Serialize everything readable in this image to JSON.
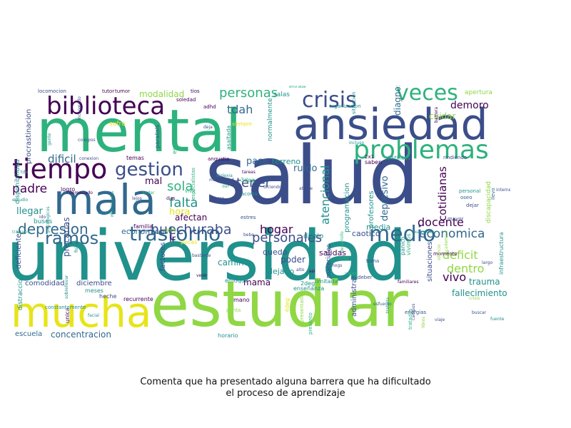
{
  "caption": {
    "line1": "Comenta que ha presentado alguna barrera que ha dificultado",
    "line2": "el proceso de aprendizaje"
  },
  "palette": {
    "dark_purple": "#440154",
    "indigo": "#3b4e8a",
    "blue": "#31688e",
    "teal": "#21918c",
    "green": "#2db27d",
    "lime": "#8fd744",
    "yellow": "#e7e419"
  },
  "words": [
    {
      "text": "salud",
      "color": "#3b4e8a"
    },
    {
      "text": "universidad",
      "color": "#21918c"
    },
    {
      "text": "mental",
      "color": "#2db27d"
    },
    {
      "text": "estudiar",
      "color": "#8fd744"
    },
    {
      "text": "mucha",
      "color": "#e7e419"
    },
    {
      "text": "ansiedad",
      "color": "#3b4e8a"
    },
    {
      "text": "mala",
      "color": "#31688e"
    },
    {
      "text": "biblioteca",
      "color": "#440154"
    },
    {
      "text": "tiempo",
      "color": "#440154"
    },
    {
      "text": "problemas",
      "color": "#2db27d"
    },
    {
      "text": "veces",
      "color": "#2db27d"
    },
    {
      "text": "crisis",
      "color": "#3b4e8a"
    },
    {
      "text": "gestion",
      "color": "#3b4e8a"
    },
    {
      "text": "trastorno",
      "color": "#31688e"
    },
    {
      "text": "ramos",
      "color": "#31688e"
    },
    {
      "text": "medio",
      "color": "#31688e"
    },
    {
      "text": "depresion",
      "color": "#31688e"
    },
    {
      "text": "huechuraba",
      "color": "#3b4e8a"
    },
    {
      "text": "personales",
      "color": "#3b4e8a"
    },
    {
      "text": "personas",
      "color": "#2db27d"
    },
    {
      "text": "falta",
      "color": "#21918c"
    },
    {
      "text": "tener",
      "color": "#3b4e8a"
    },
    {
      "text": "sola",
      "color": "#2db27d"
    },
    {
      "text": "padre",
      "color": "#440154"
    },
    {
      "text": "dificil",
      "color": "#31688e"
    },
    {
      "text": "llegar",
      "color": "#21918c"
    },
    {
      "text": "modalidad",
      "color": "#8fd744"
    },
    {
      "text": "tdah",
      "color": "#31688e"
    },
    {
      "text": "economica",
      "color": "#31688e"
    },
    {
      "text": "hogar",
      "color": "#440154"
    },
    {
      "text": "deficit",
      "color": "#8fd744"
    },
    {
      "text": "dentro",
      "color": "#8fd744"
    },
    {
      "text": "vivo",
      "color": "#440154"
    },
    {
      "text": "docente",
      "color": "#440154"
    },
    {
      "text": "demoro",
      "color": "#440154"
    },
    {
      "text": "cuidar",
      "color": "#8fd744"
    },
    {
      "text": "trauma",
      "color": "#21918c"
    },
    {
      "text": "concentracion",
      "color": "#31688e"
    },
    {
      "text": "fallecimiento",
      "color": "#21918c"
    },
    {
      "text": "diagnostico",
      "color": "#31688e"
    },
    {
      "text": "atencional",
      "color": "#21918c"
    },
    {
      "text": "depresivo",
      "color": "#31688e"
    },
    {
      "text": "cotidianas",
      "color": "#440154"
    },
    {
      "text": "hora",
      "color": "#e7e419"
    },
    {
      "text": "mal",
      "color": "#440154"
    },
    {
      "text": "ir",
      "color": "#440154"
    },
    {
      "text": "ruido",
      "color": "#31688e"
    },
    {
      "text": "pase",
      "color": "#31688e"
    },
    {
      "text": "terreno",
      "color": "#21918c"
    },
    {
      "text": "afectan",
      "color": "#440154"
    },
    {
      "text": "economicos",
      "color": "#31688e"
    },
    {
      "text": "quedo",
      "color": "#3b4e8a"
    },
    {
      "text": "poder",
      "color": "#3b4e8a"
    },
    {
      "text": "dejado",
      "color": "#21918c"
    },
    {
      "text": "salidas",
      "color": "#440154"
    },
    {
      "text": "caotico",
      "color": "#3b4e8a"
    },
    {
      "text": "media",
      "color": "#21918c"
    },
    {
      "text": "diario",
      "color": "#21918c"
    },
    {
      "text": "camino",
      "color": "#21918c"
    },
    {
      "text": "mama",
      "color": "#440154"
    },
    {
      "text": "comodidad",
      "color": "#3b4e8a"
    },
    {
      "text": "diciembre",
      "color": "#3b4e8a"
    },
    {
      "text": "escuela",
      "color": "#31688e"
    },
    {
      "text": "horario",
      "color": "#21918c"
    },
    {
      "text": "salas",
      "color": "#21918c"
    },
    {
      "text": "apertura",
      "color": "#8fd744"
    },
    {
      "text": "deficientes",
      "color": "#3b4e8a"
    },
    {
      "text": "distraccion",
      "color": "#21918c"
    },
    {
      "text": "disponibilidad",
      "color": "#21918c"
    },
    {
      "text": "procrastinacion",
      "color": "#3b4e8a"
    },
    {
      "text": "administrar",
      "color": "#3b4e8a"
    },
    {
      "text": "materiales",
      "color": "#3b4e8a"
    },
    {
      "text": "profesores",
      "color": "#21918c"
    },
    {
      "text": "programacion",
      "color": "#21918c"
    },
    {
      "text": "situaciones",
      "color": "#3b4e8a"
    },
    {
      "text": "discapacidad",
      "color": "#8fd744"
    },
    {
      "text": "infraestructura",
      "color": "#21918c"
    },
    {
      "text": "precarias",
      "color": "#3b4e8a"
    },
    {
      "text": "factores",
      "color": "#3b4e8a"
    },
    {
      "text": "familia",
      "color": "#440154"
    },
    {
      "text": "logro",
      "color": "#440154"
    },
    {
      "text": "buses",
      "color": "#21918c"
    },
    {
      "text": "temas",
      "color": "#440154"
    },
    {
      "text": "sufro",
      "color": "#e7e419"
    },
    {
      "text": "tarde",
      "color": "#8fd744"
    },
    {
      "text": "saben",
      "color": "#440154"
    },
    {
      "text": "distintos",
      "color": "#21918c"
    },
    {
      "text": "normalmente",
      "color": "#21918c"
    },
    {
      "text": "enfoque",
      "color": "#21918c"
    },
    {
      "text": "limitada",
      "color": "#21918c"
    },
    {
      "text": "enseñanza",
      "color": "#21918c"
    },
    {
      "text": "heche",
      "color": "#3b4e8a"
    },
    {
      "text": "meses",
      "color": "#21918c"
    },
    {
      "text": "recurrente",
      "color": "#440154"
    },
    {
      "text": "pocas",
      "color": "#e7e419"
    },
    {
      "text": "mano",
      "color": "#440154"
    },
    {
      "text": "punta",
      "color": "#8fd744"
    },
    {
      "text": "unica",
      "color": "#440154"
    },
    {
      "text": "tutor",
      "color": "#440154"
    },
    {
      "text": "locomocion",
      "color": "#3b4e8a"
    },
    {
      "text": "tumor",
      "color": "#440154"
    },
    {
      "text": "soledad",
      "color": "#440154"
    },
    {
      "text": "tios",
      "color": "#440154"
    },
    {
      "text": "adhd",
      "color": "#440154"
    },
    {
      "text": "especialistas",
      "color": "#2db27d"
    },
    {
      "text": "asaltada",
      "color": "#21918c"
    },
    {
      "text": "espacio",
      "color": "#2db27d"
    },
    {
      "text": "paralisis",
      "color": "#3b4e8a"
    },
    {
      "text": "angustia",
      "color": "#440154"
    },
    {
      "text": "organizacion",
      "color": "#21918c"
    },
    {
      "text": "situacion",
      "color": "#21918c"
    },
    {
      "text": "mayor",
      "color": "#3b4e8a"
    },
    {
      "text": "empatia",
      "color": "#21918c"
    },
    {
      "text": "panico",
      "color": "#21918c"
    },
    {
      "text": "vivimos",
      "color": "#2db27d"
    },
    {
      "text": "personal",
      "color": "#21918c"
    },
    {
      "text": "oseo",
      "color": "#31688e"
    },
    {
      "text": "llevo",
      "color": "#31688e"
    },
    {
      "text": "internet",
      "color": "#3b4e8a"
    },
    {
      "text": "viaje",
      "color": "#3b4e8a"
    },
    {
      "text": "esfuerzo",
      "color": "#31688e"
    },
    {
      "text": "energias",
      "color": "#3b4e8a"
    },
    {
      "text": "libres",
      "color": "#8fd744"
    },
    {
      "text": "tratadas",
      "color": "#2db27d"
    },
    {
      "text": "presento",
      "color": "#2db27d"
    },
    {
      "text": "presentado",
      "color": "#8fd744"
    },
    {
      "text": "desarrollo",
      "color": "#2db27d"
    },
    {
      "text": "trato",
      "color": "#2db27d"
    },
    {
      "text": "varios",
      "color": "#2db27d"
    },
    {
      "text": "toma",
      "color": "#3b4e8a"
    },
    {
      "text": "deber",
      "color": "#3b4e8a"
    },
    {
      "text": "examenes",
      "color": "#21918c"
    },
    {
      "text": "momento",
      "color": "#440154"
    },
    {
      "text": "largo",
      "color": "#3b4e8a"
    },
    {
      "text": "silencio",
      "color": "#8fd744"
    },
    {
      "text": "academico",
      "color": "#8fd744"
    },
    {
      "text": "tratada",
      "color": "#21918c"
    },
    {
      "text": "crisis",
      "color": "#8fd744"
    },
    {
      "text": "rindiendo",
      "color": "#3b4e8a"
    },
    {
      "text": "dejar",
      "color": "#3b4e8a"
    },
    {
      "text": "acorta",
      "color": "#21918c"
    },
    {
      "text": "estres",
      "color": "#3b4e8a"
    },
    {
      "text": "bebe",
      "color": "#3b4e8a"
    },
    {
      "text": "creo",
      "color": "#3b4e8a"
    },
    {
      "text": "vivir",
      "color": "#2db27d"
    },
    {
      "text": "dias",
      "color": "#440154"
    },
    {
      "text": "andar",
      "color": "#2db27d"
    },
    {
      "text": "lejos",
      "color": "#3b4e8a"
    },
    {
      "text": "ido",
      "color": "#3b4e8a"
    },
    {
      "text": "tda",
      "color": "#21918c"
    },
    {
      "text": "colegios",
      "color": "#3b4e8a"
    },
    {
      "text": "conexion",
      "color": "#3b4e8a"
    },
    {
      "text": "municipales",
      "color": "#21918c"
    },
    {
      "text": "fisicos",
      "color": "#21918c"
    },
    {
      "text": "atrase",
      "color": "#3b4e8a"
    },
    {
      "text": "alto",
      "color": "#3b4e8a"
    },
    {
      "text": "asi",
      "color": "#440154"
    },
    {
      "text": "hogs",
      "color": "#3b4e8a"
    },
    {
      "text": "deja",
      "color": "#3b4e8a"
    },
    {
      "text": "siempre",
      "color": "#e7e419"
    },
    {
      "text": "dar",
      "color": "#2db27d"
    },
    {
      "text": "tareas",
      "color": "#440154"
    },
    {
      "text": "incluso",
      "color": "#21918c"
    },
    {
      "text": "barrera",
      "color": "#440154"
    },
    {
      "text": "2x1",
      "color": "#440154"
    },
    {
      "text": "3deg",
      "color": "#2db27d"
    },
    {
      "text": "4deg",
      "color": "#e7e419"
    },
    {
      "text": "2deg",
      "color": "#21918c"
    },
    {
      "text": "fuente",
      "color": "#21918c"
    },
    {
      "text": "buscar",
      "color": "#3b4e8a"
    },
    {
      "text": "campus",
      "color": "#3b4e8a"
    },
    {
      "text": "venir",
      "color": "#440154"
    },
    {
      "text": "facial",
      "color": "#21918c"
    },
    {
      "text": "bastante",
      "color": "#3b4e8a"
    },
    {
      "text": "gente",
      "color": "#21918c"
    },
    {
      "text": "estudio",
      "color": "#21918c"
    },
    {
      "text": "trabajos",
      "color": "#2db27d"
    },
    {
      "text": "psicologicos",
      "color": "#21918c"
    },
    {
      "text": "sobrellevar",
      "color": "#21918c"
    },
    {
      "text": "demasiado",
      "color": "#440154"
    },
    {
      "text": "diciendo",
      "color": "#3b4e8a"
    },
    {
      "text": "dislexia",
      "color": "#21918c"
    },
    {
      "text": "maternidad",
      "color": "#3b4e8a"
    },
    {
      "text": "familiares",
      "color": "#440154"
    },
    {
      "text": "incluyendo",
      "color": "#3b4e8a"
    },
    {
      "text": "entrada",
      "color": "#2db27d"
    },
    {
      "text": "constantemente",
      "color": "#21918c"
    }
  ]
}
